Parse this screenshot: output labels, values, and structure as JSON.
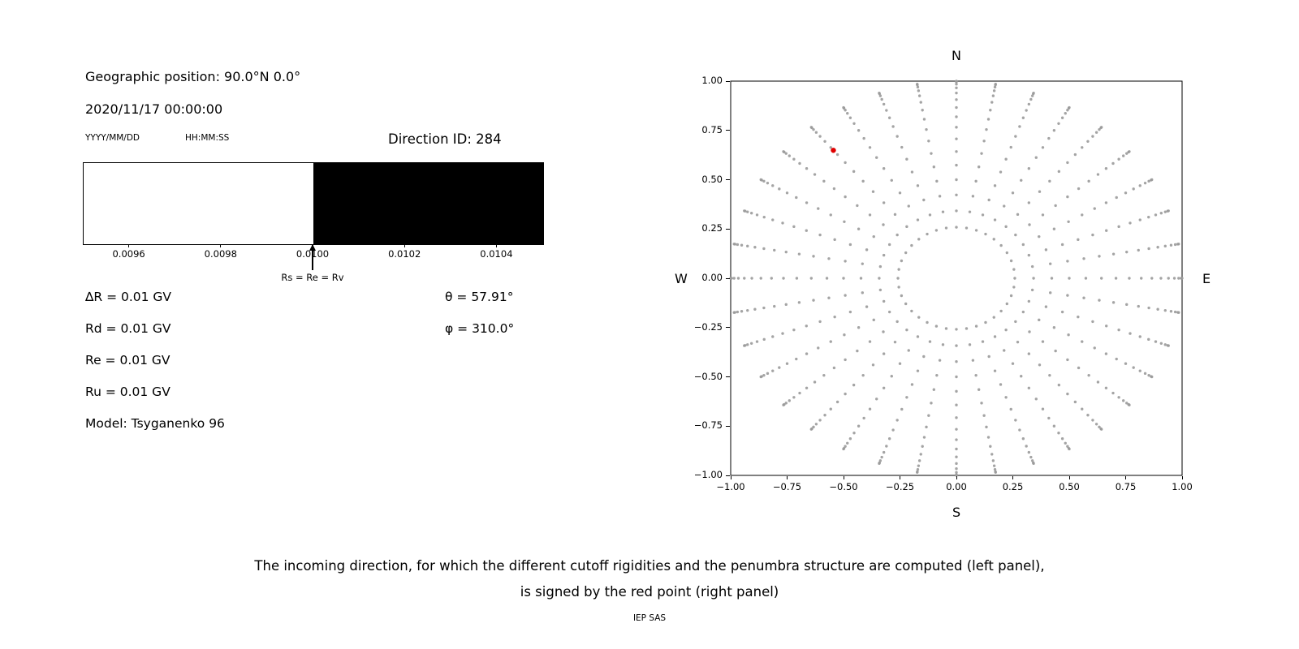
{
  "left_panel": {
    "geo_position": "Geographic position: 90.0°N 0.0°",
    "datetime": "2020/11/17 00:00:00",
    "date_format": "YYYY/MM/DD",
    "time_format": "HH:MM:SS",
    "direction_id": "Direction ID: 284",
    "delta_r": "∆R = 0.01 GV",
    "rd": "Rd = 0.01 GV",
    "re": "Re = 0.01 GV",
    "ru": "Ru = 0.01 GV",
    "model": "Model: Tsyganenko 96",
    "theta": "θ = 57.91°",
    "phi": "φ = 310.0°"
  },
  "caption": {
    "line1": "The incoming direction, for which the different cutoff rigidities and the penumbra structure are computed (left panel),",
    "line2": "is signed by the red point (right panel)",
    "credit": "IEP SAS"
  },
  "chart_data": [
    {
      "type": "area",
      "xlim": [
        0.0095,
        0.0105
      ],
      "tick_values": [
        0.0096,
        0.0098,
        0.01,
        0.0102,
        0.0104
      ],
      "tick_labels": [
        "0.0096",
        "0.0098",
        "0.0100",
        "0.0102",
        "0.0104"
      ],
      "regions": [
        {
          "from": 0.0095,
          "to": 0.01,
          "color": "#ffffff"
        },
        {
          "from": 0.01,
          "to": 0.0105,
          "color": "#000000"
        }
      ],
      "marker": {
        "x": 0.01,
        "label": "Rs = Re = Rv"
      }
    },
    {
      "type": "scatter",
      "xlim": [
        -1,
        1
      ],
      "ylim": [
        -1,
        1
      ],
      "xtick_values": [
        -1,
        -0.75,
        -0.5,
        -0.25,
        0,
        0.25,
        0.5,
        0.75,
        1
      ],
      "xtick_labels": [
        "−1.00",
        "−0.75",
        "−0.50",
        "−0.25",
        "0.00",
        "0.25",
        "0.50",
        "0.75",
        "1.00"
      ],
      "ytick_values": [
        -1,
        -0.75,
        -0.5,
        -0.25,
        0,
        0.25,
        0.5,
        0.75,
        1
      ],
      "ytick_labels": [
        "−1.00",
        "−0.75",
        "−0.50",
        "−0.25",
        "0.00",
        "0.25",
        "0.50",
        "0.75",
        "1.00"
      ],
      "compass": {
        "top": "N",
        "bottom": "S",
        "left": "W",
        "right": "E"
      },
      "grid": false,
      "dots": {
        "color": "#9a9a9a",
        "azimuth_start_deg": 0,
        "azimuth_step_deg": 10,
        "azimuth_count": 36,
        "zenith_deg": [
          15,
          20,
          25,
          30,
          35,
          40,
          45,
          50,
          55,
          60,
          65,
          70,
          75,
          80,
          85,
          90
        ],
        "radius_rule": "r = sin(zenith); x = r*sin(azimuth), y = r*cos(azimuth)"
      },
      "red_point": {
        "x": -0.545,
        "y": 0.649,
        "color": "#e00000"
      }
    }
  ]
}
